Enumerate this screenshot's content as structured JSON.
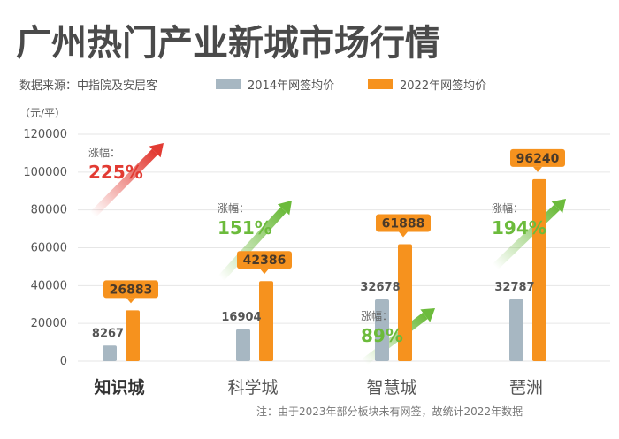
{
  "title": "广州热门产业新城市场行情",
  "source": "数据来源：中指院及安居客",
  "note": "注：由于2023年部分板块未有网签，故统计2022年数据",
  "colors": {
    "series2014": "#a7b7c2",
    "series2022": "#f6921e",
    "arrowRed": "#e23b33",
    "arrowGreen": "#6cbb3c",
    "axisText": "#555555",
    "grid": "#e6e6e6"
  },
  "chart_data": {
    "type": "bar",
    "ylabel": "（元/平）",
    "ylim": [
      0,
      120000
    ],
    "yticks": [
      0,
      20000,
      40000,
      60000,
      80000,
      100000,
      120000
    ],
    "grid": true,
    "legend_position": "top",
    "categories": [
      "知识城",
      "科学城",
      "智慧城",
      "琶洲"
    ],
    "series": [
      {
        "name": "2014年网签均价",
        "values": [
          8267,
          16904,
          32678,
          32787
        ]
      },
      {
        "name": "2022年网签均价",
        "values": [
          26883,
          42386,
          61888,
          96240
        ]
      }
    ],
    "growth_label": "涨幅：",
    "growth": [
      "225%",
      "151%",
      "89%",
      "194%"
    ]
  }
}
